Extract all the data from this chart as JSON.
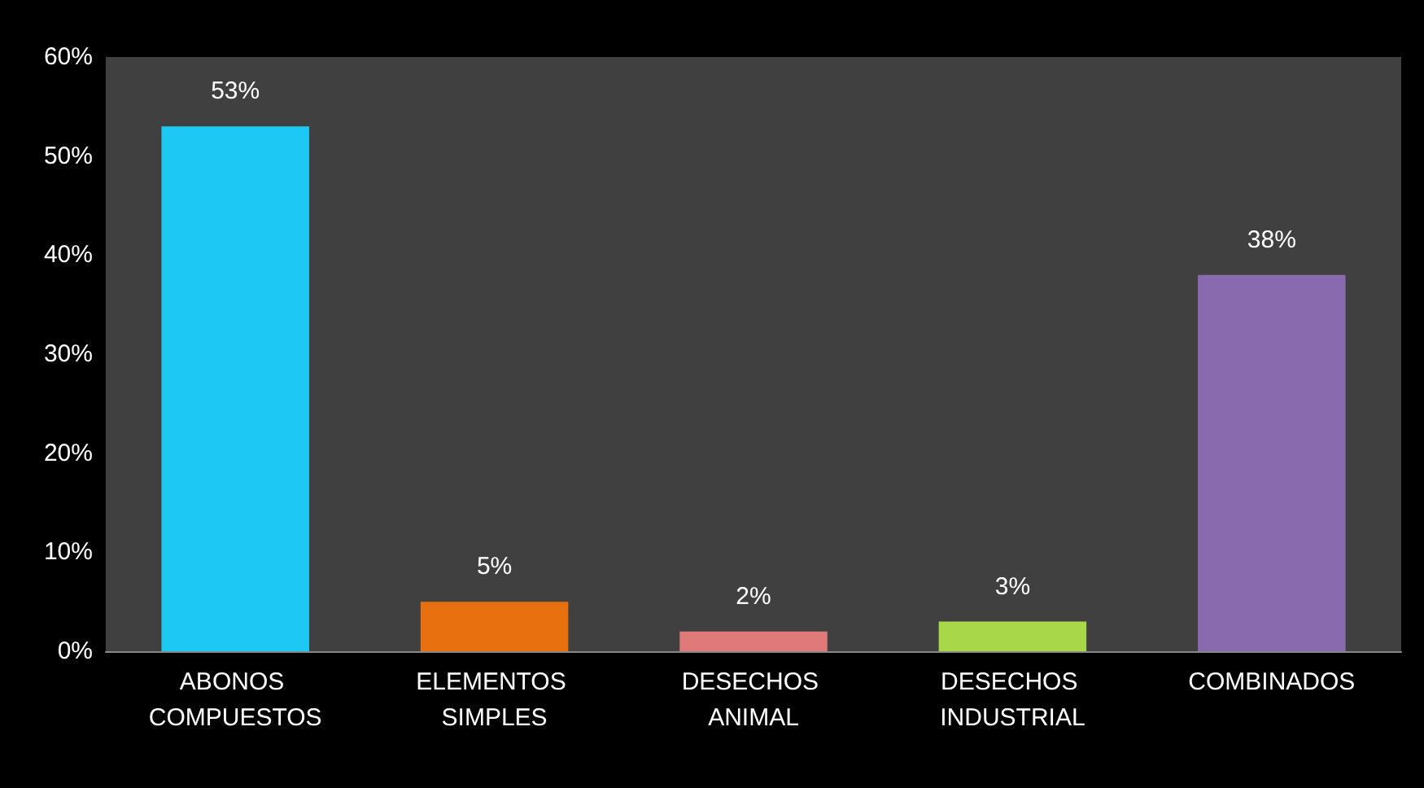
{
  "chart_data": {
    "type": "bar",
    "categories": [
      "ABONOS COMPUESTOS",
      "ELEMENTOS SIMPLES",
      "DESECHOS ANIMAL",
      "DESECHOS INDUSTRIAL",
      "COMBINADOS"
    ],
    "values": [
      53,
      5,
      2,
      3,
      38
    ],
    "colors": [
      "#1ec8f5",
      "#e8700f",
      "#e07a7a",
      "#a8d84a",
      "#8a6aae"
    ],
    "value_labels": [
      "53%",
      "5%",
      "2%",
      "3%",
      "38%"
    ],
    "ylim": [
      0,
      60
    ],
    "yticks": [
      {
        "value": 0,
        "label": "0%"
      },
      {
        "value": 10,
        "label": "10%"
      },
      {
        "value": 20,
        "label": "20%"
      },
      {
        "value": 30,
        "label": "30%"
      },
      {
        "value": 40,
        "label": "40%"
      },
      {
        "value": 50,
        "label": "50%"
      },
      {
        "value": 60,
        "label": "60%"
      }
    ],
    "grid": false
  }
}
